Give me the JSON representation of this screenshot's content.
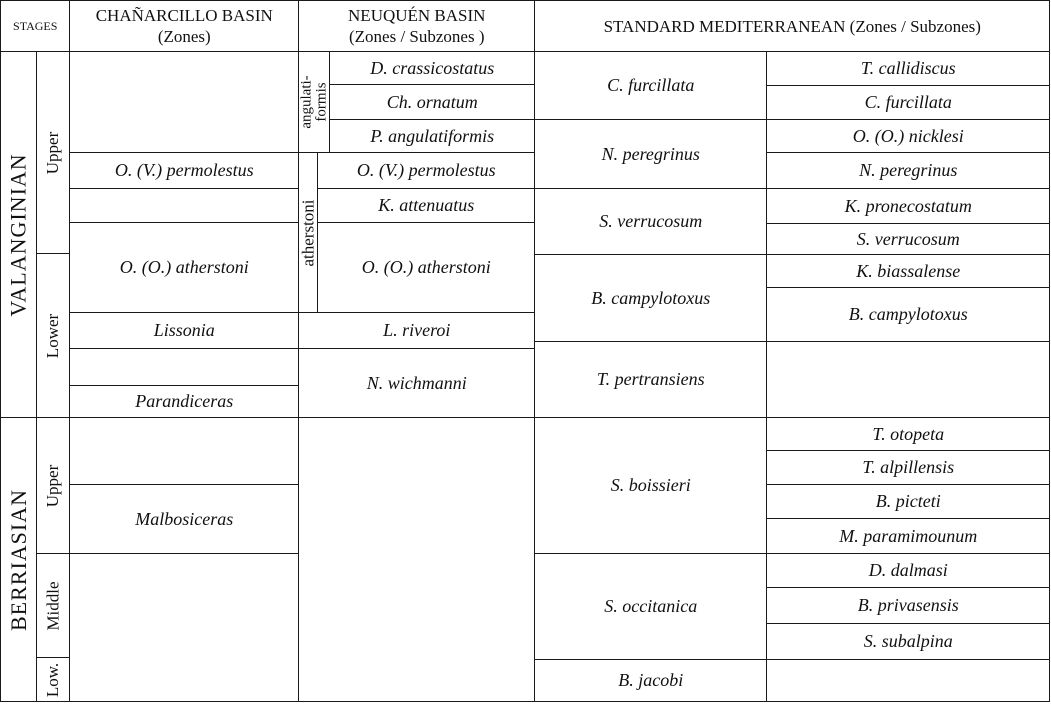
{
  "header": {
    "stages": "STAGES",
    "chanarcillo_title": "CHAÑARCILLO BASIN",
    "chanarcillo_sub": "(Zones)",
    "neuquen_title": "NEUQUÉN BASIN",
    "neuquen_sub": "(Zones / Subzones )",
    "mediterranean": "STANDARD MEDITERRANEAN (Zones / Subzones)"
  },
  "stages": {
    "valanginian": "VALANGINIAN",
    "valanginian_upper": "Upper",
    "valanginian_lower": "Lower",
    "berriasian": "BERRIASIAN",
    "berriasian_upper": "Upper",
    "berriasian_middle": "Middle",
    "berriasian_lower": "Low."
  },
  "chanarcillo": [
    "O. (V.) permolestus",
    "O. (O.) atherstoni",
    "Lissonia",
    "Parandiceras",
    "Malbosiceras"
  ],
  "neuquen": {
    "angulatiformis_line1": "angulati-",
    "angulatiformis_line2": "formis",
    "atherstoni": "atherstoni",
    "subzones": [
      "D. crassicostatus",
      "Ch. ornatum",
      "P. angulatiformis",
      "O. (V.) permolestus",
      "K. attenuatus",
      "O. (O.) atherstoni"
    ],
    "zones": [
      "L. riveroi",
      "N. wichmanni"
    ]
  },
  "mediterranean": {
    "zones": [
      "C. furcillata",
      "N. peregrinus",
      "S. verrucosum",
      "B. campylotoxus",
      "T. pertransiens",
      "S. boissieri",
      "S. occitanica",
      "B. jacobi"
    ],
    "subzones": [
      "T. callidiscus",
      "C. furcillata",
      "O. (O.) nicklesi",
      "N. peregrinus",
      "K. pronecostatum",
      "S. verrucosum",
      "K. biassalense",
      "B. campylotoxus",
      "T. otopeta",
      "T. alpillensis",
      "B. picteti",
      "M. paramimounum",
      "D. dalmasi",
      "B. privasensis",
      "S. subalpina"
    ]
  }
}
